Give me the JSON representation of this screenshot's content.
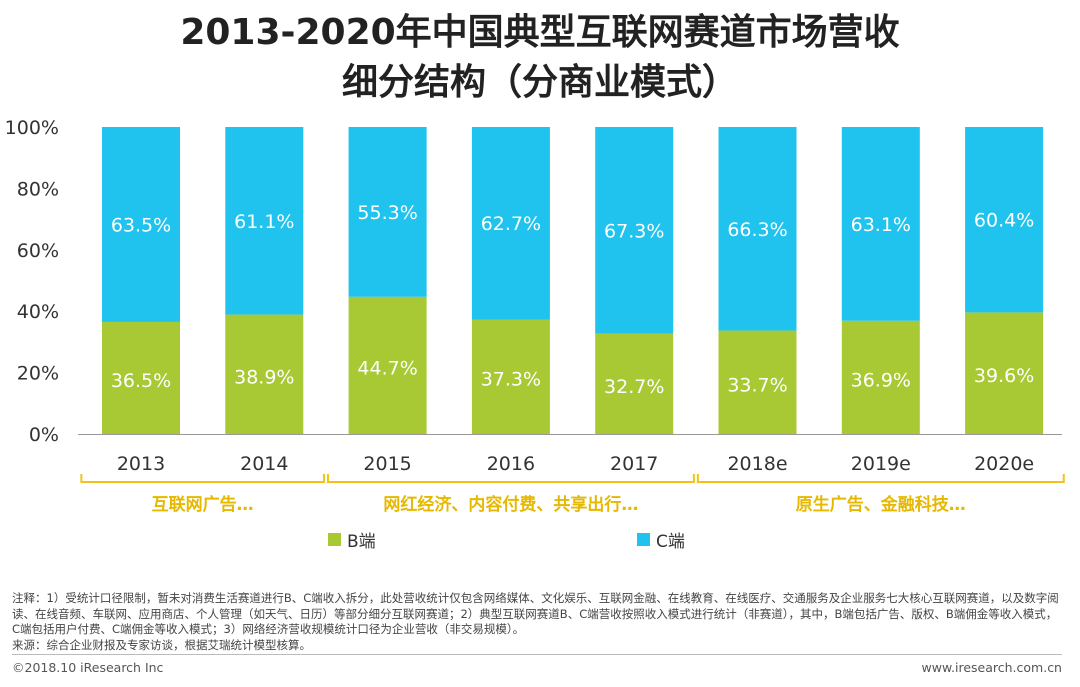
{
  "title_line1": "2013-2020年中国典型互联网赛道市场营收",
  "title_line2": "细分结构（分商业模式）",
  "colors": {
    "B": "#a8c934",
    "C": "#1fc3ed",
    "bracket": "#f2c21a",
    "annot_text": "#e6b800"
  },
  "chart_data": {
    "type": "bar",
    "stacked": true,
    "percent": true,
    "categories": [
      "2013",
      "2014",
      "2015",
      "2016",
      "2017",
      "2018e",
      "2019e",
      "2020e"
    ],
    "series": [
      {
        "name": "B端",
        "values": [
          36.5,
          38.9,
          44.7,
          37.3,
          32.7,
          33.7,
          36.9,
          39.6
        ],
        "labels": [
          "36.5%",
          "38.9%",
          "44.7%",
          "37.3%",
          "32.7%",
          "33.7%",
          "36.9%",
          "39.6%"
        ]
      },
      {
        "name": "C端",
        "values": [
          63.5,
          61.1,
          55.3,
          62.7,
          67.3,
          66.3,
          63.1,
          60.4
        ],
        "labels": [
          "63.5%",
          "61.1%",
          "55.3%",
          "62.7%",
          "67.3%",
          "66.3%",
          "63.1%",
          "60.4%"
        ]
      }
    ],
    "ylim": [
      0,
      100
    ],
    "yticks": [
      "0%",
      "20%",
      "40%",
      "60%",
      "80%",
      "100%"
    ],
    "annotations": [
      {
        "text": "互联网广告…",
        "span": [
          "2013",
          "2014"
        ]
      },
      {
        "text": "网红经济、内容付费、共享出行…",
        "span": [
          "2015",
          "2017"
        ]
      },
      {
        "text": "原生广告、金融科技…",
        "span": [
          "2018e",
          "2020e"
        ]
      }
    ]
  },
  "legend": {
    "b_label": "B端",
    "c_label": "C端"
  },
  "notes": [
    "注释：1）受统计口径限制，暂未对消费生活赛道进行B、C端收入拆分，此处营收统计仅包含网络媒体、文化娱乐、互联网金融、在线教育、在线医疗、交通服务及企业服务七大核心互联网赛道，以及数字阅读、在线音频、车联网、应用商店、个人管理（如天气、日历）等部分细分互联网赛道；2）典型互联网赛道B、C端营收按照收入模式进行统计（非赛道），其中，B端包括广告、版权、B端佣金等收入模式，C端包括用户付费、C端佣金等收入模式；3）网络经济营收规模统计口径为企业营收（非交易规模）。",
    "来源：综合企业财报及专家访谈，根据艾瑞统计模型核算。"
  ],
  "footer": {
    "copyright": "©2018.10 iResearch Inc",
    "website": "www.iresearch.com.cn"
  }
}
